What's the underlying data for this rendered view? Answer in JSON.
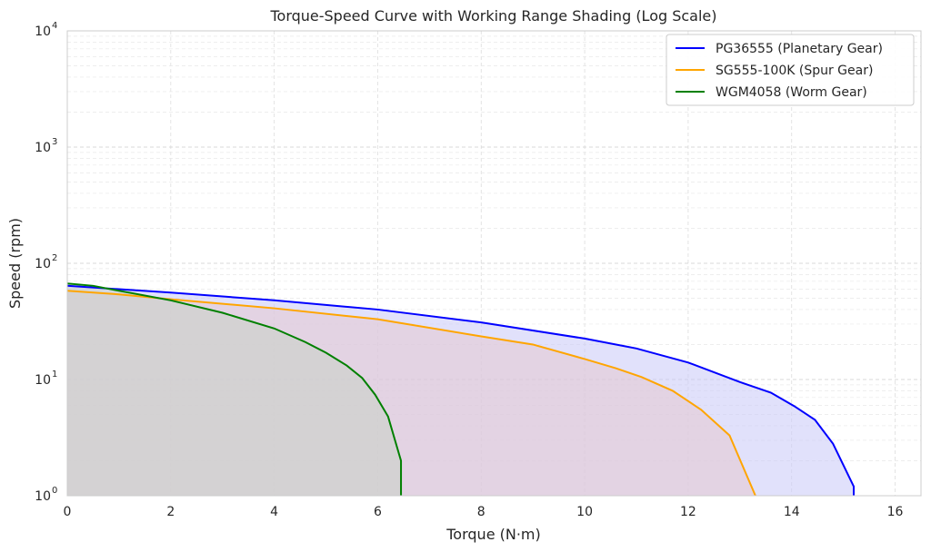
{
  "chart_data": {
    "type": "area",
    "title": "Torque-Speed Curve with Working Range Shading (Log Scale)",
    "xlabel": "Torque (N·m)",
    "ylabel": "Speed (rpm)",
    "xlim": [
      0,
      16.5
    ],
    "ylim": [
      1,
      10000
    ],
    "y_scale": "log",
    "grid": true,
    "legend_position": "top-right",
    "x_ticks": [
      {
        "value": 0,
        "label": "0"
      },
      {
        "value": 2,
        "label": "2"
      },
      {
        "value": 4,
        "label": "4"
      },
      {
        "value": 6,
        "label": "6"
      },
      {
        "value": 8,
        "label": "8"
      },
      {
        "value": 10,
        "label": "10"
      },
      {
        "value": 12,
        "label": "12"
      },
      {
        "value": 14,
        "label": "14"
      },
      {
        "value": 16,
        "label": "16"
      }
    ],
    "y_ticks": [
      {
        "value": 1,
        "base": "10",
        "exp": "0"
      },
      {
        "value": 10,
        "base": "10",
        "exp": "1"
      },
      {
        "value": 100,
        "base": "10",
        "exp": "2"
      },
      {
        "value": 1000,
        "base": "10",
        "exp": "3"
      },
      {
        "value": 10000,
        "base": "10",
        "exp": "4"
      }
    ],
    "series": [
      {
        "name": "PG36555 (Planetary Gear)",
        "color": "#0000ff",
        "fill": "#c8c8f8",
        "points": [
          [
            0,
            64
          ],
          [
            2,
            56
          ],
          [
            4,
            48
          ],
          [
            6,
            40
          ],
          [
            8,
            31
          ],
          [
            10,
            22.5
          ],
          [
            11,
            18.5
          ],
          [
            12,
            14
          ],
          [
            13,
            9.5
          ],
          [
            13.6,
            7.7
          ],
          [
            14.05,
            5.9
          ],
          [
            14.45,
            4.5
          ],
          [
            14.8,
            2.8
          ],
          [
            15.2,
            1.2
          ],
          [
            15.2,
            1.0
          ]
        ]
      },
      {
        "name": "SG555-100K (Spur Gear)",
        "color": "#ffa500",
        "fill": "#e6c9cf",
        "points": [
          [
            0,
            58
          ],
          [
            1,
            54
          ],
          [
            2,
            49
          ],
          [
            4,
            41
          ],
          [
            6,
            33
          ],
          [
            8,
            23.5
          ],
          [
            9,
            20
          ],
          [
            10,
            15
          ],
          [
            10.6,
            12.5
          ],
          [
            11.1,
            10.5
          ],
          [
            11.7,
            8
          ],
          [
            12.25,
            5.5
          ],
          [
            12.8,
            3.3
          ],
          [
            13.3,
            1.0
          ]
        ]
      },
      {
        "name": "WGM4058 (Worm Gear)",
        "color": "#008000",
        "fill": "#c9d2c7",
        "points": [
          [
            0,
            67
          ],
          [
            0.5,
            64
          ],
          [
            1,
            58
          ],
          [
            2,
            48
          ],
          [
            3,
            37.5
          ],
          [
            4,
            27.5
          ],
          [
            4.6,
            21
          ],
          [
            5,
            17
          ],
          [
            5.4,
            13.2
          ],
          [
            5.7,
            10.3
          ],
          [
            5.95,
            7.4
          ],
          [
            6.2,
            4.8
          ],
          [
            6.45,
            2.0
          ],
          [
            6.45,
            1.0
          ]
        ]
      }
    ]
  }
}
